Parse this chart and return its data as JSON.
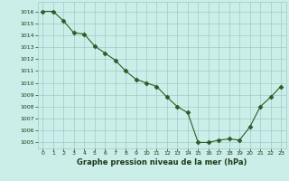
{
  "hours": [
    0,
    1,
    2,
    3,
    4,
    5,
    6,
    7,
    8,
    9,
    10,
    11,
    12,
    13,
    14,
    15,
    16,
    17,
    18,
    19,
    20,
    21,
    22,
    23
  ],
  "pressure": [
    1016.0,
    1016.0,
    1015.2,
    1014.2,
    1014.1,
    1013.1,
    1012.5,
    1011.9,
    1011.0,
    1010.3,
    1010.0,
    1009.7,
    1008.8,
    1008.0,
    1007.5,
    1005.0,
    1005.0,
    1005.2,
    1005.3,
    1005.2,
    1006.3,
    1008.0,
    1008.8,
    1009.7
  ],
  "xlim": [
    -0.5,
    23.5
  ],
  "ylim": [
    1004.5,
    1016.8
  ],
  "yticks": [
    1005,
    1006,
    1007,
    1008,
    1009,
    1010,
    1011,
    1012,
    1013,
    1014,
    1015,
    1016
  ],
  "xticks": [
    0,
    1,
    2,
    3,
    4,
    5,
    6,
    7,
    8,
    9,
    10,
    11,
    12,
    13,
    14,
    15,
    16,
    17,
    18,
    19,
    20,
    21,
    22,
    23
  ],
  "line_color": "#2d5a27",
  "marker": "D",
  "marker_size": 2.5,
  "bg_color": "#cceee8",
  "grid_color": "#99cccc",
  "xlabel": "Graphe pression niveau de la mer (hPa)",
  "xlabel_color": "#1a3a18",
  "tick_color": "#1a3a18"
}
